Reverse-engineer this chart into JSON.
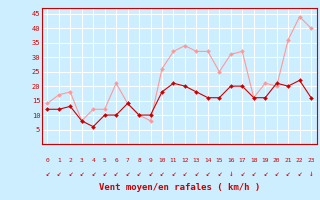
{
  "x": [
    0,
    1,
    2,
    3,
    4,
    5,
    6,
    7,
    8,
    9,
    10,
    11,
    12,
    13,
    14,
    15,
    16,
    17,
    18,
    19,
    20,
    21,
    22,
    23
  ],
  "wind_mean": [
    12,
    12,
    13,
    8,
    6,
    10,
    10,
    14,
    10,
    10,
    18,
    21,
    20,
    18,
    16,
    16,
    20,
    20,
    16,
    16,
    21,
    20,
    22,
    16
  ],
  "wind_gusts": [
    14,
    17,
    18,
    8,
    12,
    12,
    21,
    14,
    10,
    8,
    26,
    32,
    34,
    32,
    32,
    25,
    31,
    32,
    16,
    21,
    20,
    36,
    44,
    40
  ],
  "bg_color": "#cceeff",
  "grid_color": "#ffffff",
  "mean_color": "#cc0000",
  "gust_color": "#ff9999",
  "xlabel": "Vent moyen/en rafales ( km/h )",
  "xlabel_color": "#cc0000",
  "tick_color": "#cc0000",
  "ylim": [
    0,
    47
  ],
  "yticks": [
    5,
    10,
    15,
    20,
    25,
    30,
    35,
    40,
    45
  ],
  "arrow_color": "#cc0000",
  "arrows": [
    "↙",
    "↙",
    "↙",
    "↙",
    "↙",
    "↙",
    "↙",
    "↙",
    "↙",
    "↙",
    "↙",
    "↙",
    "↙",
    "↙",
    "↙",
    "↙",
    "↓",
    "↙",
    "↙",
    "↙",
    "↙",
    "↙",
    "↙",
    "↓"
  ]
}
